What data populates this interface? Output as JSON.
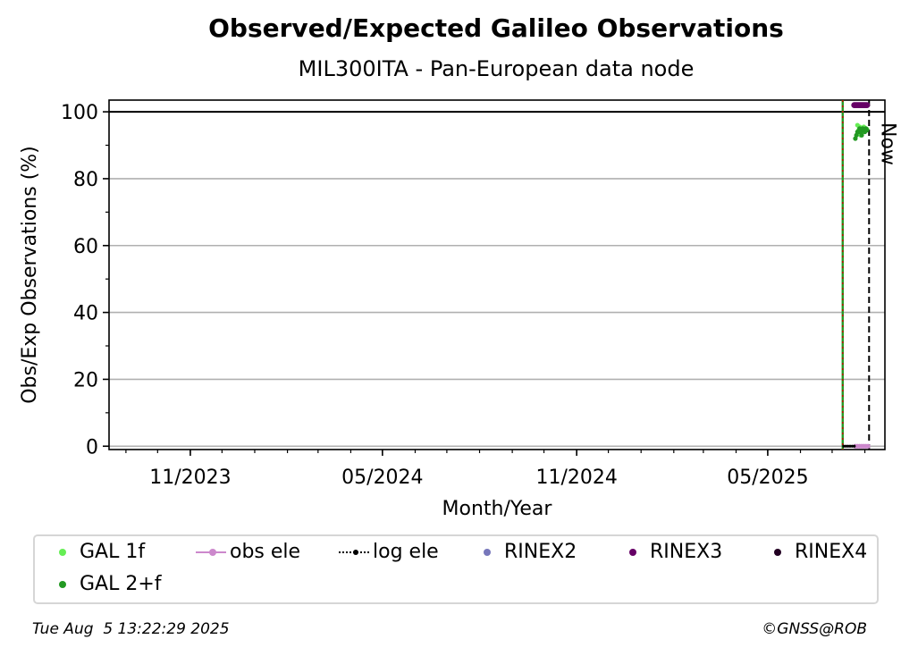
{
  "chart_data": {
    "type": "scatter",
    "title": "Observed/Expected Galileo Observations",
    "subtitle": "MIL300ITA - Pan-European data node",
    "xlabel": "Month/Year",
    "ylabel": "Obs/Exp Observations (%)",
    "xlim": [
      "2023-08-16",
      "2025-08-20"
    ],
    "ylim": [
      -1,
      103.5
    ],
    "x_ticks": [
      {
        "date": "2023-11-01",
        "label": "11/2023"
      },
      {
        "date": "2024-05-01",
        "label": "05/2024"
      },
      {
        "date": "2024-11-01",
        "label": "11/2024"
      },
      {
        "date": "2025-05-01",
        "label": "05/2025"
      }
    ],
    "y_ticks": [
      0,
      20,
      40,
      60,
      80,
      100
    ],
    "grid": true,
    "reference_line_y": 100,
    "start_line_date": "2025-07-11",
    "now_line": {
      "date": "2025-08-05",
      "label": "Now"
    },
    "series": [
      {
        "name": "GAL 1f",
        "color": "#66ee55",
        "points": [
          [
            "2025-07-25",
            96
          ],
          [
            "2025-07-26",
            94.5
          ],
          [
            "2025-07-27",
            95.5
          ],
          [
            "2025-07-28",
            93
          ],
          [
            "2025-07-29",
            95
          ],
          [
            "2025-07-30",
            94
          ],
          [
            "2025-07-31",
            95.5
          ],
          [
            "2025-08-01",
            94.5
          ],
          [
            "2025-08-02",
            95
          ],
          [
            "2025-08-03",
            94.8
          ]
        ]
      },
      {
        "name": "GAL 2+f",
        "color": "#229922",
        "points": [
          [
            "2025-07-23",
            92
          ],
          [
            "2025-07-24",
            93
          ],
          [
            "2025-07-25",
            94
          ],
          [
            "2025-07-26",
            94
          ],
          [
            "2025-07-27",
            95
          ],
          [
            "2025-07-28",
            94
          ],
          [
            "2025-07-29",
            93
          ],
          [
            "2025-07-30",
            95
          ],
          [
            "2025-07-31",
            94.5
          ],
          [
            "2025-08-01",
            94
          ],
          [
            "2025-08-02",
            95
          ],
          [
            "2025-08-03",
            94.5
          ]
        ]
      },
      {
        "name": "obs ele",
        "color": "#cc88cc",
        "points": [
          [
            "2025-07-23",
            0
          ],
          [
            "2025-07-25",
            0
          ],
          [
            "2025-07-27",
            0
          ],
          [
            "2025-07-29",
            0
          ],
          [
            "2025-07-31",
            0
          ],
          [
            "2025-08-02",
            0
          ],
          [
            "2025-08-04",
            0
          ]
        ]
      },
      {
        "name": "log ele",
        "color": "#000000",
        "points": [
          [
            "2025-07-12",
            0
          ],
          [
            "2025-07-14",
            0
          ],
          [
            "2025-07-16",
            0
          ],
          [
            "2025-07-18",
            0
          ],
          [
            "2025-07-20",
            0
          ],
          [
            "2025-07-22",
            0
          ]
        ]
      },
      {
        "name": "RINEX2",
        "color": "#7777bb",
        "points": []
      },
      {
        "name": "RINEX3",
        "color": "#660066",
        "points": [
          [
            "2025-07-22",
            102
          ],
          [
            "2025-07-23",
            102
          ],
          [
            "2025-07-24",
            102
          ],
          [
            "2025-07-25",
            102
          ],
          [
            "2025-07-26",
            102
          ],
          [
            "2025-07-27",
            102
          ],
          [
            "2025-07-28",
            102
          ],
          [
            "2025-07-29",
            102
          ],
          [
            "2025-07-30",
            102
          ],
          [
            "2025-07-31",
            102
          ],
          [
            "2025-08-01",
            102
          ],
          [
            "2025-08-02",
            102
          ],
          [
            "2025-08-03",
            102
          ]
        ]
      },
      {
        "name": "RINEX4",
        "color": "#220022",
        "points": []
      }
    ],
    "legend_placement": "bottom"
  },
  "footer": {
    "timestamp": "Tue Aug  5 13:22:29 2025",
    "credit": "©GNSS@ROB"
  },
  "legend": [
    {
      "label": "GAL 1f",
      "style": "dot",
      "color": "#66ee55"
    },
    {
      "label": "obs ele",
      "style": "line-dot",
      "color": "#cc88cc"
    },
    {
      "label": "log ele",
      "style": "dotted-line",
      "color": "#000000"
    },
    {
      "label": "RINEX2",
      "style": "dot",
      "color": "#7777bb"
    },
    {
      "label": "RINEX3",
      "style": "dot",
      "color": "#660066"
    },
    {
      "label": "RINEX4",
      "style": "dot",
      "color": "#220022"
    },
    {
      "label": "GAL 2+f",
      "style": "dot",
      "color": "#229922"
    }
  ]
}
